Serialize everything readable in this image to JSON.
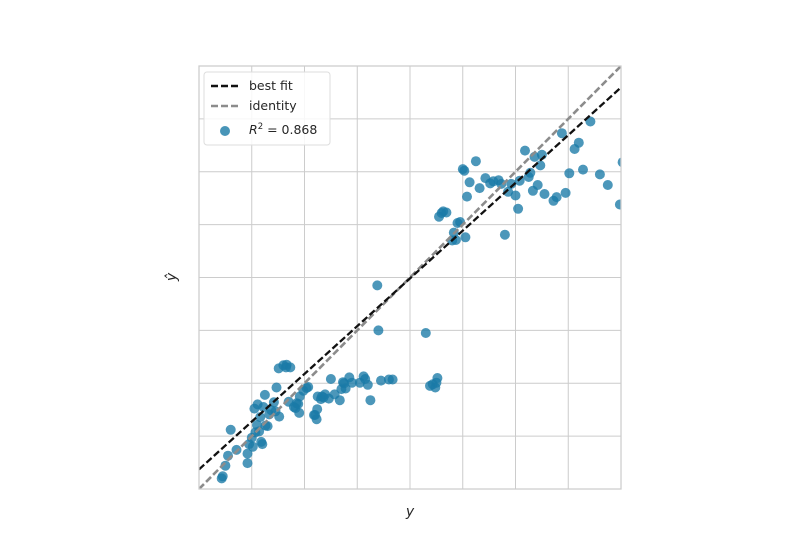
{
  "chart_data": {
    "type": "scatter",
    "title": "",
    "xlabel": "y",
    "ylabel": "ŷ",
    "xlim": [
      0.0,
      8.0
    ],
    "ylim": [
      0.0,
      8.0
    ],
    "grid": true,
    "legend_position": "upper-left",
    "colors": {
      "points": "#1a7aa6",
      "best_fit": "#111111",
      "identity": "#8c8c8c",
      "grid": "#cccccc",
      "spine": "#cccccc"
    },
    "best_fit": {
      "slope": 0.903,
      "intercept": 0.371
    },
    "legend": {
      "best_fit_label": "best fit",
      "identity_label": "identity",
      "r2_prefix": "R",
      "r2_sup": "2",
      "r2_value": " = 0.868"
    },
    "points": [
      [
        0.43,
        0.2
      ],
      [
        0.45,
        0.24
      ],
      [
        0.5,
        0.44
      ],
      [
        0.55,
        0.63
      ],
      [
        0.6,
        1.12
      ],
      [
        0.71,
        0.74
      ],
      [
        0.92,
        0.49
      ],
      [
        0.92,
        0.67
      ],
      [
        0.95,
        0.85
      ],
      [
        1.0,
        0.97
      ],
      [
        1.02,
        0.8
      ],
      [
        1.05,
        1.52
      ],
      [
        1.07,
        1.07
      ],
      [
        1.1,
        1.21
      ],
      [
        1.11,
        1.6
      ],
      [
        1.14,
        1.09
      ],
      [
        1.16,
        1.36
      ],
      [
        1.18,
        0.89
      ],
      [
        1.2,
        0.85
      ],
      [
        1.22,
        1.55
      ],
      [
        1.25,
        1.78
      ],
      [
        1.26,
        1.2
      ],
      [
        1.3,
        1.19
      ],
      [
        1.33,
        1.41
      ],
      [
        1.37,
        1.49
      ],
      [
        1.42,
        1.64
      ],
      [
        1.45,
        1.47
      ],
      [
        1.47,
        1.92
      ],
      [
        1.51,
        2.28
      ],
      [
        1.52,
        1.37
      ],
      [
        1.6,
        2.34
      ],
      [
        1.65,
        2.3
      ],
      [
        1.66,
        2.35
      ],
      [
        1.7,
        1.65
      ],
      [
        1.73,
        2.3
      ],
      [
        1.8,
        1.55
      ],
      [
        1.83,
        1.53
      ],
      [
        1.85,
        1.62
      ],
      [
        1.88,
        1.61
      ],
      [
        1.9,
        1.44
      ],
      [
        1.91,
        1.75
      ],
      [
        1.98,
        1.86
      ],
      [
        2.04,
        1.91
      ],
      [
        2.07,
        1.93
      ],
      [
        2.18,
        1.4
      ],
      [
        2.2,
        1.4
      ],
      [
        2.23,
        1.32
      ],
      [
        2.24,
        1.51
      ],
      [
        2.25,
        1.75
      ],
      [
        2.31,
        1.7
      ],
      [
        2.33,
        1.75
      ],
      [
        2.36,
        1.73
      ],
      [
        2.39,
        1.79
      ],
      [
        2.46,
        1.71
      ],
      [
        2.5,
        2.08
      ],
      [
        2.57,
        1.79
      ],
      [
        2.67,
        1.68
      ],
      [
        2.7,
        1.89
      ],
      [
        2.73,
        2.02
      ],
      [
        2.75,
        2.0
      ],
      [
        2.78,
        1.9
      ],
      [
        2.85,
        2.11
      ],
      [
        2.9,
        2.01
      ],
      [
        3.05,
        2.01
      ],
      [
        3.12,
        2.13
      ],
      [
        3.15,
        2.08
      ],
      [
        3.2,
        1.97
      ],
      [
        3.25,
        1.68
      ],
      [
        3.38,
        3.85
      ],
      [
        3.4,
        3.0
      ],
      [
        3.45,
        2.05
      ],
      [
        3.6,
        2.07
      ],
      [
        3.67,
        2.07
      ],
      [
        4.3,
        2.95
      ],
      [
        4.38,
        1.95
      ],
      [
        4.43,
        1.98
      ],
      [
        4.48,
        1.92
      ],
      [
        4.5,
        2.01
      ],
      [
        4.52,
        2.1
      ],
      [
        4.55,
        5.15
      ],
      [
        4.6,
        5.22
      ],
      [
        4.63,
        5.25
      ],
      [
        4.69,
        5.23
      ],
      [
        4.8,
        4.7
      ],
      [
        4.83,
        4.85
      ],
      [
        4.87,
        4.71
      ],
      [
        4.9,
        5.03
      ],
      [
        4.95,
        5.05
      ],
      [
        5.0,
        6.05
      ],
      [
        5.03,
        6.02
      ],
      [
        5.05,
        4.76
      ],
      [
        5.08,
        5.53
      ],
      [
        5.13,
        5.8
      ],
      [
        5.25,
        6.2
      ],
      [
        5.32,
        5.69
      ],
      [
        5.43,
        5.88
      ],
      [
        5.52,
        5.78
      ],
      [
        5.58,
        5.82
      ],
      [
        5.68,
        5.84
      ],
      [
        5.73,
        5.77
      ],
      [
        5.8,
        4.81
      ],
      [
        5.86,
        5.62
      ],
      [
        5.92,
        5.77
      ],
      [
        6.0,
        5.55
      ],
      [
        6.05,
        5.3
      ],
      [
        6.08,
        5.83
      ],
      [
        6.18,
        6.4
      ],
      [
        6.25,
        5.9
      ],
      [
        6.28,
        5.98
      ],
      [
        6.33,
        5.64
      ],
      [
        6.36,
        6.28
      ],
      [
        6.42,
        5.75
      ],
      [
        6.47,
        6.12
      ],
      [
        6.5,
        6.32
      ],
      [
        6.55,
        5.58
      ],
      [
        6.72,
        5.45
      ],
      [
        6.78,
        5.52
      ],
      [
        6.88,
        6.73
      ],
      [
        6.95,
        5.6
      ],
      [
        7.02,
        5.97
      ],
      [
        7.12,
        6.43
      ],
      [
        7.2,
        6.55
      ],
      [
        7.28,
        6.04
      ],
      [
        7.42,
        6.95
      ],
      [
        7.6,
        5.95
      ],
      [
        7.75,
        5.75
      ],
      [
        7.98,
        5.38
      ],
      [
        8.03,
        6.18
      ]
    ]
  }
}
